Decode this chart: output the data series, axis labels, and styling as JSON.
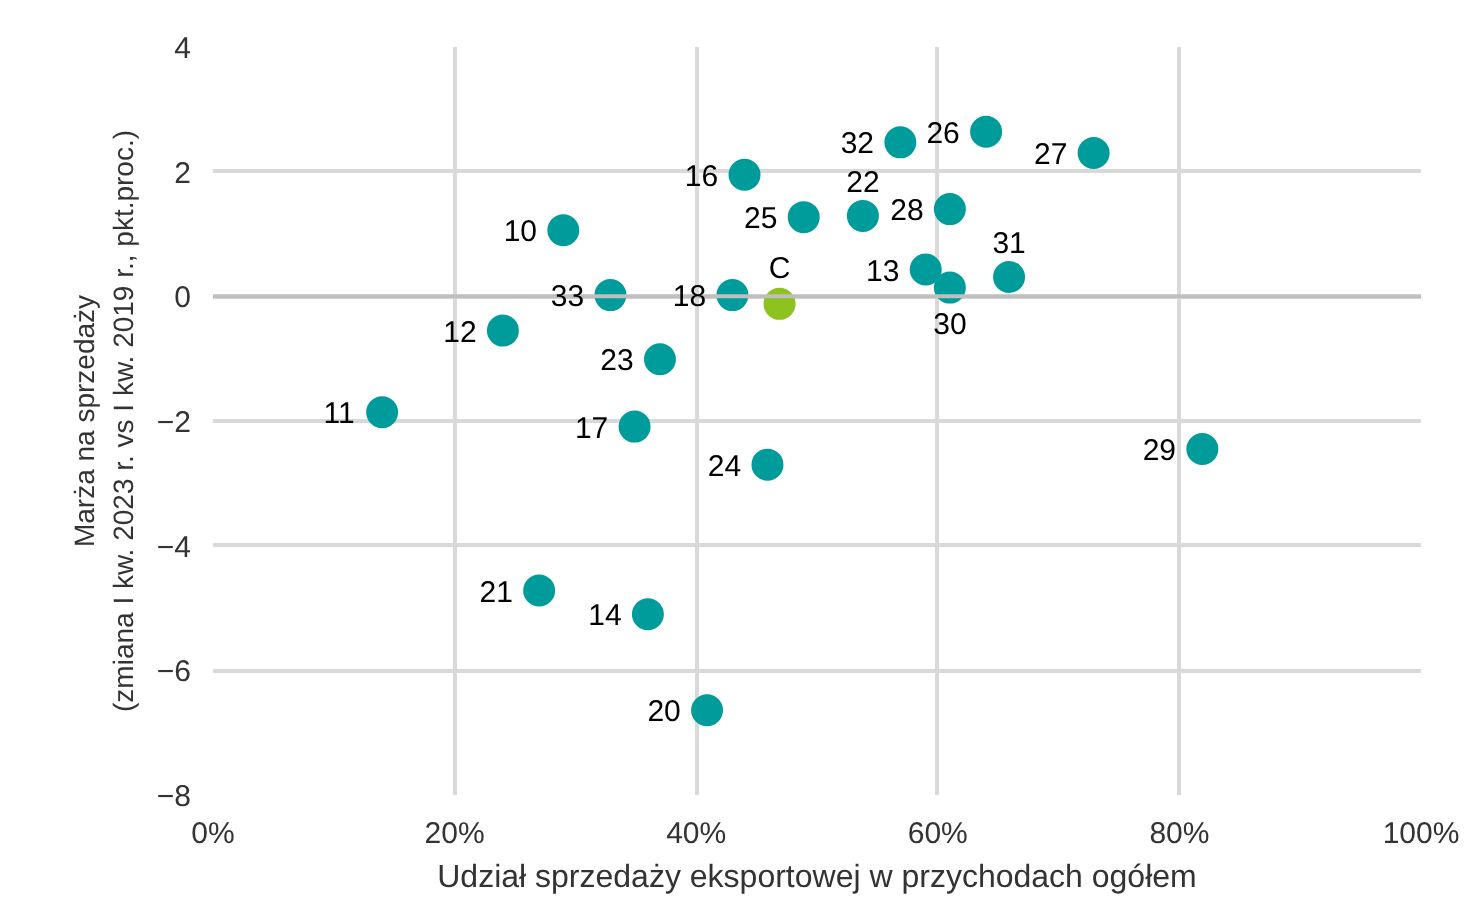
{
  "chart_data": {
    "type": "scatter",
    "xlabel": "Udział sprzedaży eksportowej w przychodach ogółem",
    "ylabel": "Marża na sprzedaży\n(zmiana I kw. 2023 r. vs I kw. 2019 r., pkt.proc.)",
    "x": [
      56.9,
      64.0,
      72.9,
      44.0,
      48.9,
      53.8,
      61.0,
      29.0,
      59.0,
      61.0,
      65.9,
      32.9,
      43.0,
      46.9,
      24.0,
      37.0,
      14.0,
      34.9,
      45.9,
      81.9,
      27.0,
      36.0,
      40.9
    ],
    "values": [
      2.47,
      2.64,
      2.3,
      1.95,
      1.27,
      1.29,
      1.4,
      1.06,
      0.43,
      0.14,
      0.31,
      0.02,
      0.02,
      -0.12,
      -0.55,
      -1.01,
      -1.86,
      -2.09,
      -2.7,
      -2.45,
      -4.72,
      -5.1,
      -6.64
    ],
    "colors": [
      "#009b9b",
      "#009b9b",
      "#009b9b",
      "#009b9b",
      "#009b9b",
      "#009b9b",
      "#009b9b",
      "#009b9b",
      "#009b9b",
      "#009b9b",
      "#009b9b",
      "#009b9b",
      "#009b9b",
      "#8dc21f",
      "#009b9b",
      "#009b9b",
      "#009b9b",
      "#009b9b",
      "#009b9b",
      "#009b9b",
      "#009b9b",
      "#009b9b",
      "#009b9b"
    ],
    "marker": "circle",
    "xlim": [
      0,
      100
    ],
    "ylim": [
      -8,
      4
    ],
    "xticks": [
      {
        "value": 0,
        "label": "0%"
      },
      {
        "value": 20,
        "label": "20%"
      },
      {
        "value": 40,
        "label": "40%"
      },
      {
        "value": 60,
        "label": "60%"
      },
      {
        "value": 80,
        "label": "80%"
      },
      {
        "value": 100,
        "label": "100%"
      }
    ],
    "yticks": [
      -8,
      -6,
      -4,
      -2,
      0,
      2,
      4
    ],
    "grid": true,
    "ref_lines": [
      {
        "axis": "y",
        "value": 0,
        "color": "#bfbfbf"
      }
    ],
    "annotations": [
      {
        "text": "32",
        "x": 56.9,
        "y": 2.47
      },
      {
        "text": "26",
        "x": 64.0,
        "y": 2.64
      },
      {
        "text": "27",
        "x": 72.9,
        "y": 2.3
      },
      {
        "text": "16",
        "x": 44.0,
        "y": 1.95
      },
      {
        "text": "25",
        "x": 48.9,
        "y": 1.27
      },
      {
        "text": "22",
        "x": 53.8,
        "y": 1.29
      },
      {
        "text": "28",
        "x": 61.0,
        "y": 1.4
      },
      {
        "text": "10",
        "x": 29.0,
        "y": 1.06
      },
      {
        "text": "13",
        "x": 59.0,
        "y": 0.43
      },
      {
        "text": "30",
        "x": 61.0,
        "y": 0.14
      },
      {
        "text": "31",
        "x": 65.9,
        "y": 0.31
      },
      {
        "text": "33",
        "x": 32.9,
        "y": 0.02
      },
      {
        "text": "18",
        "x": 43.0,
        "y": 0.02
      },
      {
        "text": "C",
        "x": 46.9,
        "y": -0.12
      },
      {
        "text": "12",
        "x": 24.0,
        "y": -0.55
      },
      {
        "text": "23",
        "x": 37.0,
        "y": -1.01
      },
      {
        "text": "11",
        "x": 14.0,
        "y": -1.86
      },
      {
        "text": "17",
        "x": 34.9,
        "y": -2.09
      },
      {
        "text": "24",
        "x": 45.9,
        "y": -2.7
      },
      {
        "text": "29",
        "x": 81.9,
        "y": -2.45
      },
      {
        "text": "21",
        "x": 27.0,
        "y": -4.72
      },
      {
        "text": "14",
        "x": 36.0,
        "y": -5.1
      },
      {
        "text": "20",
        "x": 40.9,
        "y": -6.64
      }
    ]
  }
}
